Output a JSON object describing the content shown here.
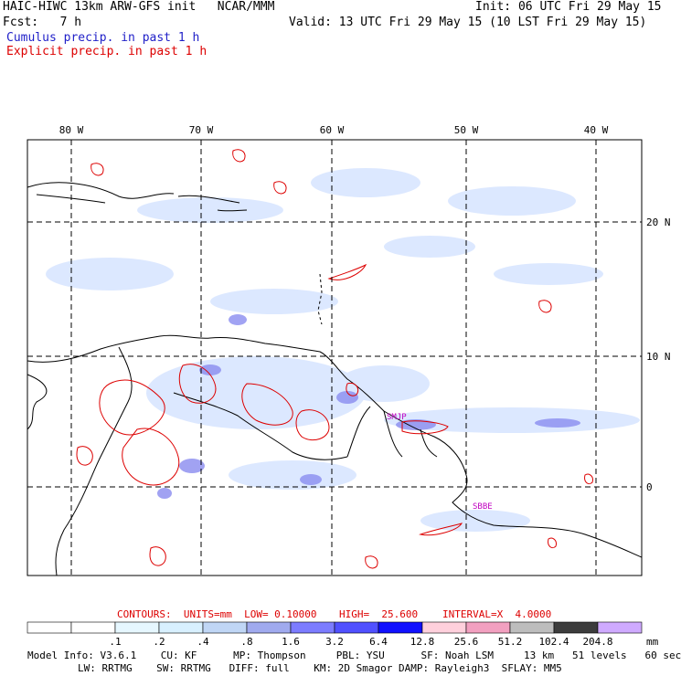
{
  "header": {
    "title_left": "HAIC-HIWC 13km ARW-GFS init   NCAR/MMM",
    "init": "Init: 06 UTC Fri 29 May 15",
    "fcst": "Fcst:   7 h",
    "valid": "Valid: 13 UTC Fri 29 May 15 (10 LST Fri 29 May 15)",
    "legend_cumulus": "Cumulus precip. in past 1 h",
    "legend_explicit": "Explicit precip. in past 1 h"
  },
  "colors": {
    "cumulus": "#1f1fc8",
    "explicit": "#dd0000",
    "contour_text": "#dd0000",
    "station_label": "#c000c0"
  },
  "map": {
    "lon_labels": [
      "80 W",
      "70 W",
      "60 W",
      "50 W",
      "40 W"
    ],
    "lat_labels": [
      "20 N",
      "10 N",
      "0"
    ],
    "station_labels": [
      "SMJP",
      "SBBE"
    ]
  },
  "contours_line": {
    "contours": "CONTOURS:  UNITS=mm  LOW= 0.10000",
    "high": "HIGH=  25.600",
    "interval": "INTERVAL=X  4.0000"
  },
  "colorbar": {
    "unit": "mm",
    "labels": [
      ".1",
      ".2",
      ".4",
      ".8",
      "1.6",
      "3.2",
      "6.4",
      "12.8",
      "25.6",
      "51.2",
      "102.4",
      "204.8"
    ],
    "colors": [
      "#ffffff",
      "#ffffff",
      "#e6f7ff",
      "#d8f0ff",
      "#c0d6f5",
      "#a0aaee",
      "#7c7cff",
      "#5050ff",
      "#1010ff",
      "#ffd0dc",
      "#f2a0c0",
      "#bdbdbd",
      "#3c3c3c",
      "#cfaaff"
    ]
  },
  "model_info": {
    "line1": "Model Info: V3.6.1    CU: KF      MP: Thompson     PBL: YSU      SF: Noah LSM     13 km   51 levels   60 sec",
    "line2": "LW: RRTMG    SW: RRTMG   DIFF: full    KM: 2D Smagor DAMP: Rayleigh3  SFLAY: MM5"
  }
}
